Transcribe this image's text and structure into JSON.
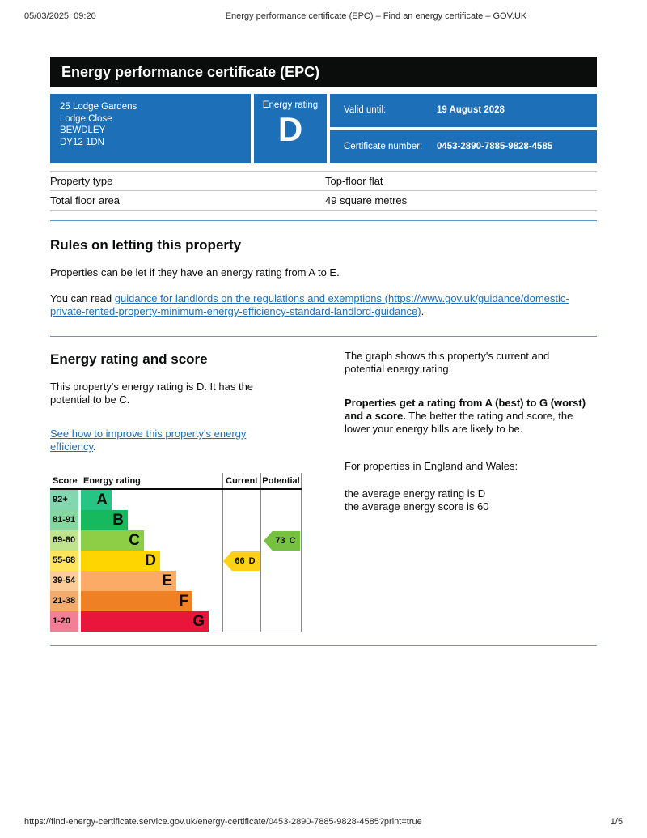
{
  "page": {
    "print_header": {
      "datetime": "05/03/2025, 09:20",
      "title": "Energy performance certificate (EPC) – Find an energy certificate – GOV.UK"
    },
    "print_footer": {
      "url": "https://find-energy-certificate.service.gov.uk/energy-certificate/0453-2890-7885-9828-4585?print=true",
      "page_number": "1/5"
    }
  },
  "banner": {
    "title": "Energy performance certificate (EPC)"
  },
  "summary": {
    "accent_color": "#1d70b8",
    "address_lines": [
      "25 Lodge Gardens",
      "Lodge Close",
      "BEWDLEY",
      "DY12 1DN"
    ],
    "energy_rating_label": "Energy rating",
    "energy_rating": "D",
    "valid_until_label": "Valid until:",
    "valid_until": "19 August 2028",
    "certificate_number_label": "Certificate number:",
    "certificate_number": "0453-2890-7885-9828-4585"
  },
  "property_details": {
    "rows": [
      {
        "label": "Property type",
        "value": "Top-floor flat"
      },
      {
        "label": "Total floor area",
        "value": "49 square metres"
      }
    ]
  },
  "rules_section": {
    "heading": "Rules on letting this property",
    "paragraph1": "Properties can be let if they have an energy rating from A to E.",
    "paragraph2_prefix": "You can read ",
    "link_text": "guidance for landlords on the regulations and exemptions (https://www.gov.uk/guidance/domestic-private-rented-property-minimum-energy-efficiency-standard-landlord-guidance)",
    "paragraph2_suffix": "."
  },
  "rating_section": {
    "heading": "Energy rating and score",
    "intro": "This property's energy rating is D. It has the potential to be C.",
    "improve_link": "See how to improve this property's energy efficiency",
    "improve_link_suffix": ".",
    "graph_intro": "The graph shows this property's current and potential energy rating.",
    "explain_bold": "Properties get a rating from A (best) to G (worst) and a score.",
    "explain_rest": " The better the rating and score, the lower your energy bills are likely to be.",
    "region_line": "For properties in England and Wales:",
    "average_rating_line": "the average energy rating is D",
    "average_score_line": "the average energy score is 60"
  },
  "chart_data": {
    "type": "epc-rating-bars",
    "headers": {
      "score": "Score",
      "rating": "Energy rating",
      "current": "Current",
      "potential": "Potential"
    },
    "bands": [
      {
        "letter": "A",
        "score_range": "92+",
        "color": "#26c485",
        "score_color": "#82d7b1"
      },
      {
        "letter": "B",
        "score_range": "81-91",
        "color": "#17b95e",
        "score_color": "#85d79f"
      },
      {
        "letter": "C",
        "score_range": "69-80",
        "color": "#8ece46",
        "score_color": "#c0e48d"
      },
      {
        "letter": "D",
        "score_range": "55-68",
        "color": "#ffd500",
        "score_color": "#ffe45e"
      },
      {
        "letter": "E",
        "score_range": "39-54",
        "color": "#fbab66",
        "score_color": "#fbcc98"
      },
      {
        "letter": "F",
        "score_range": "21-38",
        "color": "#ef8023",
        "score_color": "#f4aa6b"
      },
      {
        "letter": "G",
        "score_range": "1-20",
        "color": "#e9153b",
        "score_color": "#f27f95"
      }
    ],
    "current": {
      "score": 66,
      "band": "D",
      "color": "#fcd116"
    },
    "potential": {
      "score": 73,
      "band": "C",
      "color": "#76c13f"
    }
  }
}
